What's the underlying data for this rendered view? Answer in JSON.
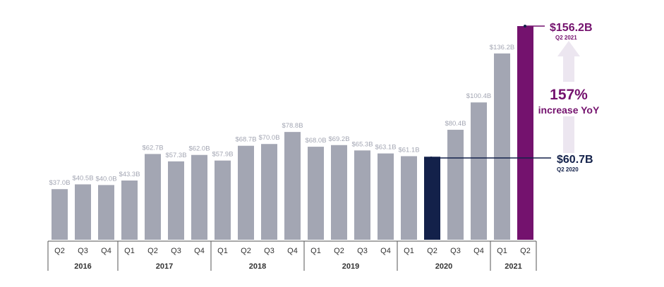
{
  "chart_data": {
    "type": "bar",
    "title": "",
    "xlabel": "",
    "ylabel": "",
    "ylim": [
      0,
      156.2
    ],
    "grid": false,
    "unit_prefix": "$",
    "unit_suffix": "B",
    "categories": [
      "Q2",
      "Q3",
      "Q4",
      "Q1",
      "Q2",
      "Q3",
      "Q4",
      "Q1",
      "Q2",
      "Q3",
      "Q4",
      "Q1",
      "Q2",
      "Q3",
      "Q4",
      "Q1",
      "Q2",
      "Q3",
      "Q4",
      "Q1",
      "Q2"
    ],
    "values": [
      37.0,
      40.5,
      40.0,
      43.3,
      62.7,
      57.3,
      62.0,
      57.9,
      68.7,
      70.0,
      78.8,
      68.0,
      69.2,
      65.3,
      63.1,
      61.1,
      60.7,
      80.4,
      100.4,
      136.2,
      156.2
    ],
    "labels": [
      "$37.0B",
      "$40.5B",
      "$40.0B",
      "$43.3B",
      "$62.7B",
      "$57.3B",
      "$62.0B",
      "$57.9B",
      "$68.7B",
      "$70.0B",
      "$78.8B",
      "$68.0B",
      "$69.2B",
      "$65.3B",
      "$63.1B",
      "$61.1B",
      "",
      "$80.4B",
      "$100.4B",
      "$136.2B",
      ""
    ],
    "years": [
      {
        "label": "2016",
        "count": 3
      },
      {
        "label": "2017",
        "count": 4
      },
      {
        "label": "2018",
        "count": 4
      },
      {
        "label": "2019",
        "count": 4
      },
      {
        "label": "2020",
        "count": 4
      },
      {
        "label": "2021",
        "count": 2
      }
    ],
    "highlights": {
      "16": "#13214a",
      "20": "#74126e"
    },
    "annotations": {
      "high": {
        "value": "$156.2B",
        "sub": "Q2 2021"
      },
      "low": {
        "value": "$60.7B",
        "sub": "Q2 2020"
      },
      "growth": {
        "pct": "157%",
        "text": "increase YoY"
      }
    },
    "colors": {
      "bar": "#a3a6b3",
      "label": "#a3a6b3",
      "axis": "#555555",
      "growth_arrow": "#ece6f0",
      "purple": "#74126e",
      "navy": "#13214a"
    }
  }
}
